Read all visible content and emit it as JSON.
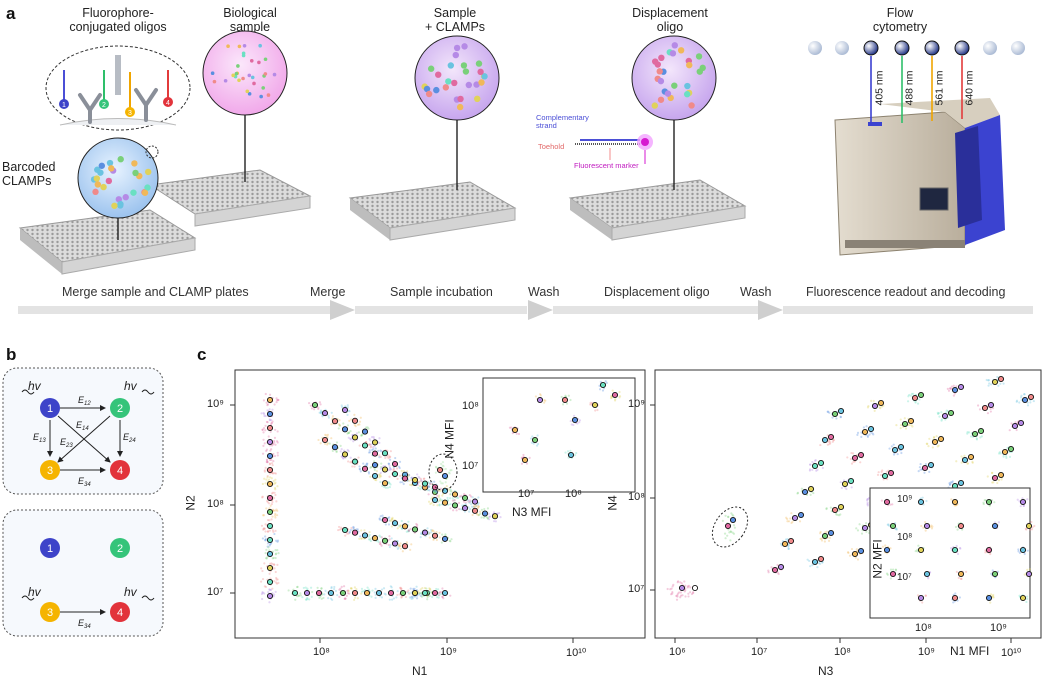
{
  "panel_a": {
    "label": "a",
    "titles": {
      "oligos": "Fluorophore-\nconjugated oligos",
      "biosample": "Biological\nsample",
      "sample_clamps": "Sample\n+ CLAMPs",
      "displacement": "Displacement\noligo",
      "flow": "Flow\ncytometry",
      "barcoded": "Barcoded\nCLAMPs"
    },
    "oligo_numbers": [
      "1",
      "2",
      "3",
      "4"
    ],
    "lasers": [
      "405 nm",
      "488 nm",
      "561 nm",
      "640 nm"
    ],
    "laser_colors": [
      "#3b3fd0",
      "#2ebf6a",
      "#f0a500",
      "#e23b3b"
    ],
    "strand_labels": [
      "Complementary\nstrand",
      "Toehold",
      "Fluorescent marker"
    ],
    "steps": [
      "Merge sample and CLAMP plates",
      "Merge",
      "Sample incubation",
      "Wash",
      "Displacement oligo",
      "Wash",
      "Fluorescence readout and decoding"
    ]
  },
  "panel_b": {
    "label": "b",
    "hv": "hv",
    "nodes": [
      {
        "id": "1",
        "color": "#3d43c9"
      },
      {
        "id": "2",
        "color": "#35c47a"
      },
      {
        "id": "3",
        "color": "#f5b400"
      },
      {
        "id": "4",
        "color": "#e2333b"
      }
    ],
    "edges_top": [
      "E12",
      "E13",
      "E14",
      "E23",
      "E24",
      "E34"
    ],
    "edge_bottom": "E34"
  },
  "panel_c": {
    "label": "c",
    "left": {
      "xlabel": "N1",
      "ylabel": "N2",
      "xticks": [
        "10⁸",
        "10⁹",
        "10¹⁰"
      ],
      "yticks": [
        "10⁷",
        "10⁸",
        "10⁹"
      ],
      "inset": {
        "xlabel": "N3 MFI",
        "ylabel": "N4 MFI",
        "xticks": [
          "10⁷",
          "10⁸"
        ],
        "yticks": [
          "10⁷",
          "10⁸"
        ]
      }
    },
    "right": {
      "xlabel": "N3",
      "ylabel": "N4",
      "xticks": [
        "10⁶",
        "10⁷",
        "10⁸",
        "10⁹",
        "10¹⁰"
      ],
      "yticks": [
        "10⁷",
        "10⁸",
        "10⁹"
      ],
      "inset": {
        "xlabel": "N1 MFI",
        "ylabel": "N2 MFI",
        "xticks": [
          "10⁸",
          "10⁹"
        ],
        "yticks": [
          "10⁷",
          "10⁸",
          "10⁹"
        ]
      }
    }
  }
}
